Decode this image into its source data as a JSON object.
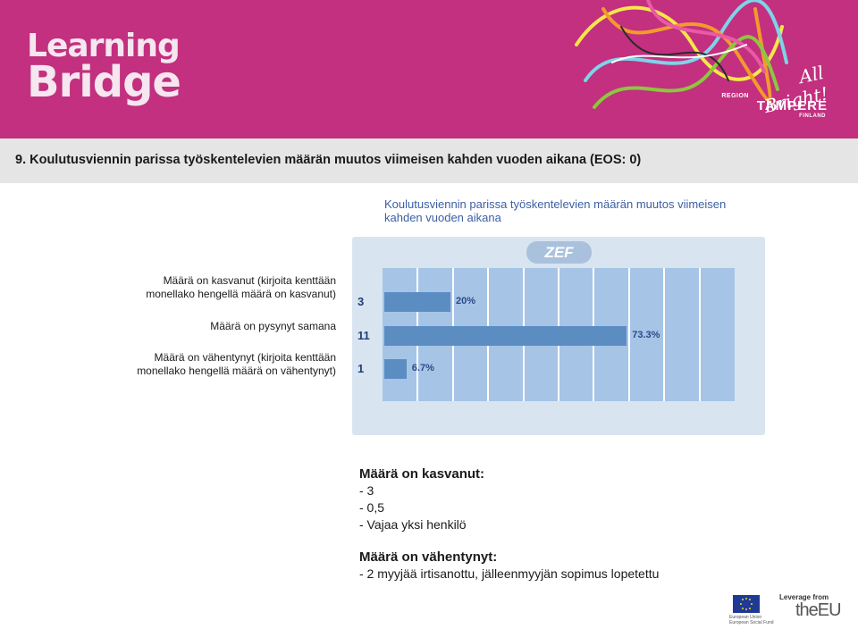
{
  "header": {
    "logo_line1": "Learning",
    "logo_line2": "Bridge",
    "partner_bright": "All Bright!",
    "partner_region": "REGION",
    "partner_name": "TAMPERE",
    "partner_country": "FINLAND"
  },
  "heading": "9. Koulutusviennin parissa työskentelevien määrän muutos viimeisen kahden vuoden aikana (EOS: 0)",
  "chart_data": {
    "type": "bar",
    "orientation": "horizontal",
    "title": "Koulutusviennin parissa työskentelevien määrän muutos viimeisen kahden vuoden aikana",
    "brand": "ZEF",
    "categories": [
      "Määrä on kasvanut (kirjoita kenttään monellako hengellä määrä on kasvanut)",
      "Määrä on pysynyt samana",
      "Määrä on vähentynyt (kirjoita kenttään monellako hengellä määrä on vähentynyt)"
    ],
    "category_lines": [
      [
        "Määrä on kasvanut (kirjoita kenttään",
        "monellako hengellä määrä on kasvanut)"
      ],
      [
        "Määrä on pysynyt samana"
      ],
      [
        "Määrä on vähentynyt (kirjoita kenttään",
        "monellako hengellä määrä on vähentynyt)"
      ]
    ],
    "counts": [
      3,
      11,
      1
    ],
    "values": [
      20,
      73.3,
      6.7
    ],
    "value_labels": [
      "20%",
      "73.3%",
      "6.7%"
    ],
    "xlim": [
      0,
      100
    ],
    "grid": true,
    "colors": {
      "bar": "#5b8dc3",
      "plot_bg": "#a6c4e6",
      "panel_bg": "#d9e4f1",
      "grid": "#ffffff"
    }
  },
  "notes": {
    "increased_heading": "Määrä on kasvanut:",
    "increased_items": [
      "- 3",
      "- 0,5",
      "- Vajaa yksi henkilö"
    ],
    "decreased_heading": "Määrä on vähentynyt:",
    "decreased_items": [
      "- 2 myyjää irtisanottu, jälleenmyyjän sopimus lopetettu"
    ]
  },
  "footer": {
    "leverage": "Leverage from",
    "the_eu": "theEU",
    "eu_line1": "European Union",
    "eu_line2": "European Social Fund"
  },
  "colors": {
    "banner": "#c2307f",
    "title_bar": "#e5e5e5"
  }
}
